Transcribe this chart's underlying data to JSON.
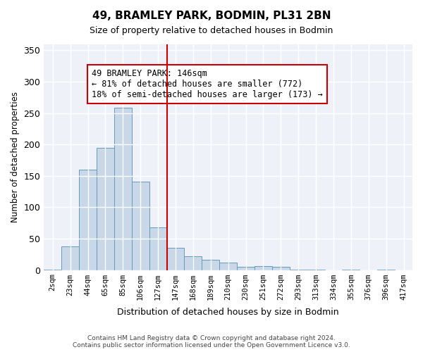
{
  "title": "49, BRAMLEY PARK, BODMIN, PL31 2BN",
  "subtitle": "Size of property relative to detached houses in Bodmin",
  "xlabel": "Distribution of detached houses by size in Bodmin",
  "ylabel": "Number of detached properties",
  "bar_labels": [
    "2sqm",
    "23sqm",
    "44sqm",
    "65sqm",
    "85sqm",
    "106sqm",
    "127sqm",
    "147sqm",
    "168sqm",
    "189sqm",
    "210sqm",
    "230sqm",
    "251sqm",
    "272sqm",
    "293sqm",
    "313sqm",
    "334sqm",
    "355sqm",
    "376sqm",
    "396sqm",
    "417sqm"
  ],
  "bar_values": [
    1,
    38,
    160,
    195,
    258,
    141,
    68,
    35,
    22,
    16,
    12,
    5,
    6,
    5,
    1,
    1,
    0,
    1,
    0,
    1,
    0
  ],
  "bar_color": "#c8d8e8",
  "bar_edge_color": "#6699bb",
  "vline_color": "#cc0000",
  "annotation_text": "49 BRAMLEY PARK: 146sqm\n← 81% of detached houses are smaller (772)\n18% of semi-detached houses are larger (173) →",
  "annotation_box_color": "#ffffff",
  "annotation_box_edge": "#cc0000",
  "ylim": [
    0,
    360
  ],
  "yticks": [
    0,
    50,
    100,
    150,
    200,
    250,
    300,
    350
  ],
  "background_color": "#eef2f8",
  "grid_color": "#ffffff",
  "footer_line1": "Contains HM Land Registry data © Crown copyright and database right 2024.",
  "footer_line2": "Contains public sector information licensed under the Open Government Licence v3.0."
}
